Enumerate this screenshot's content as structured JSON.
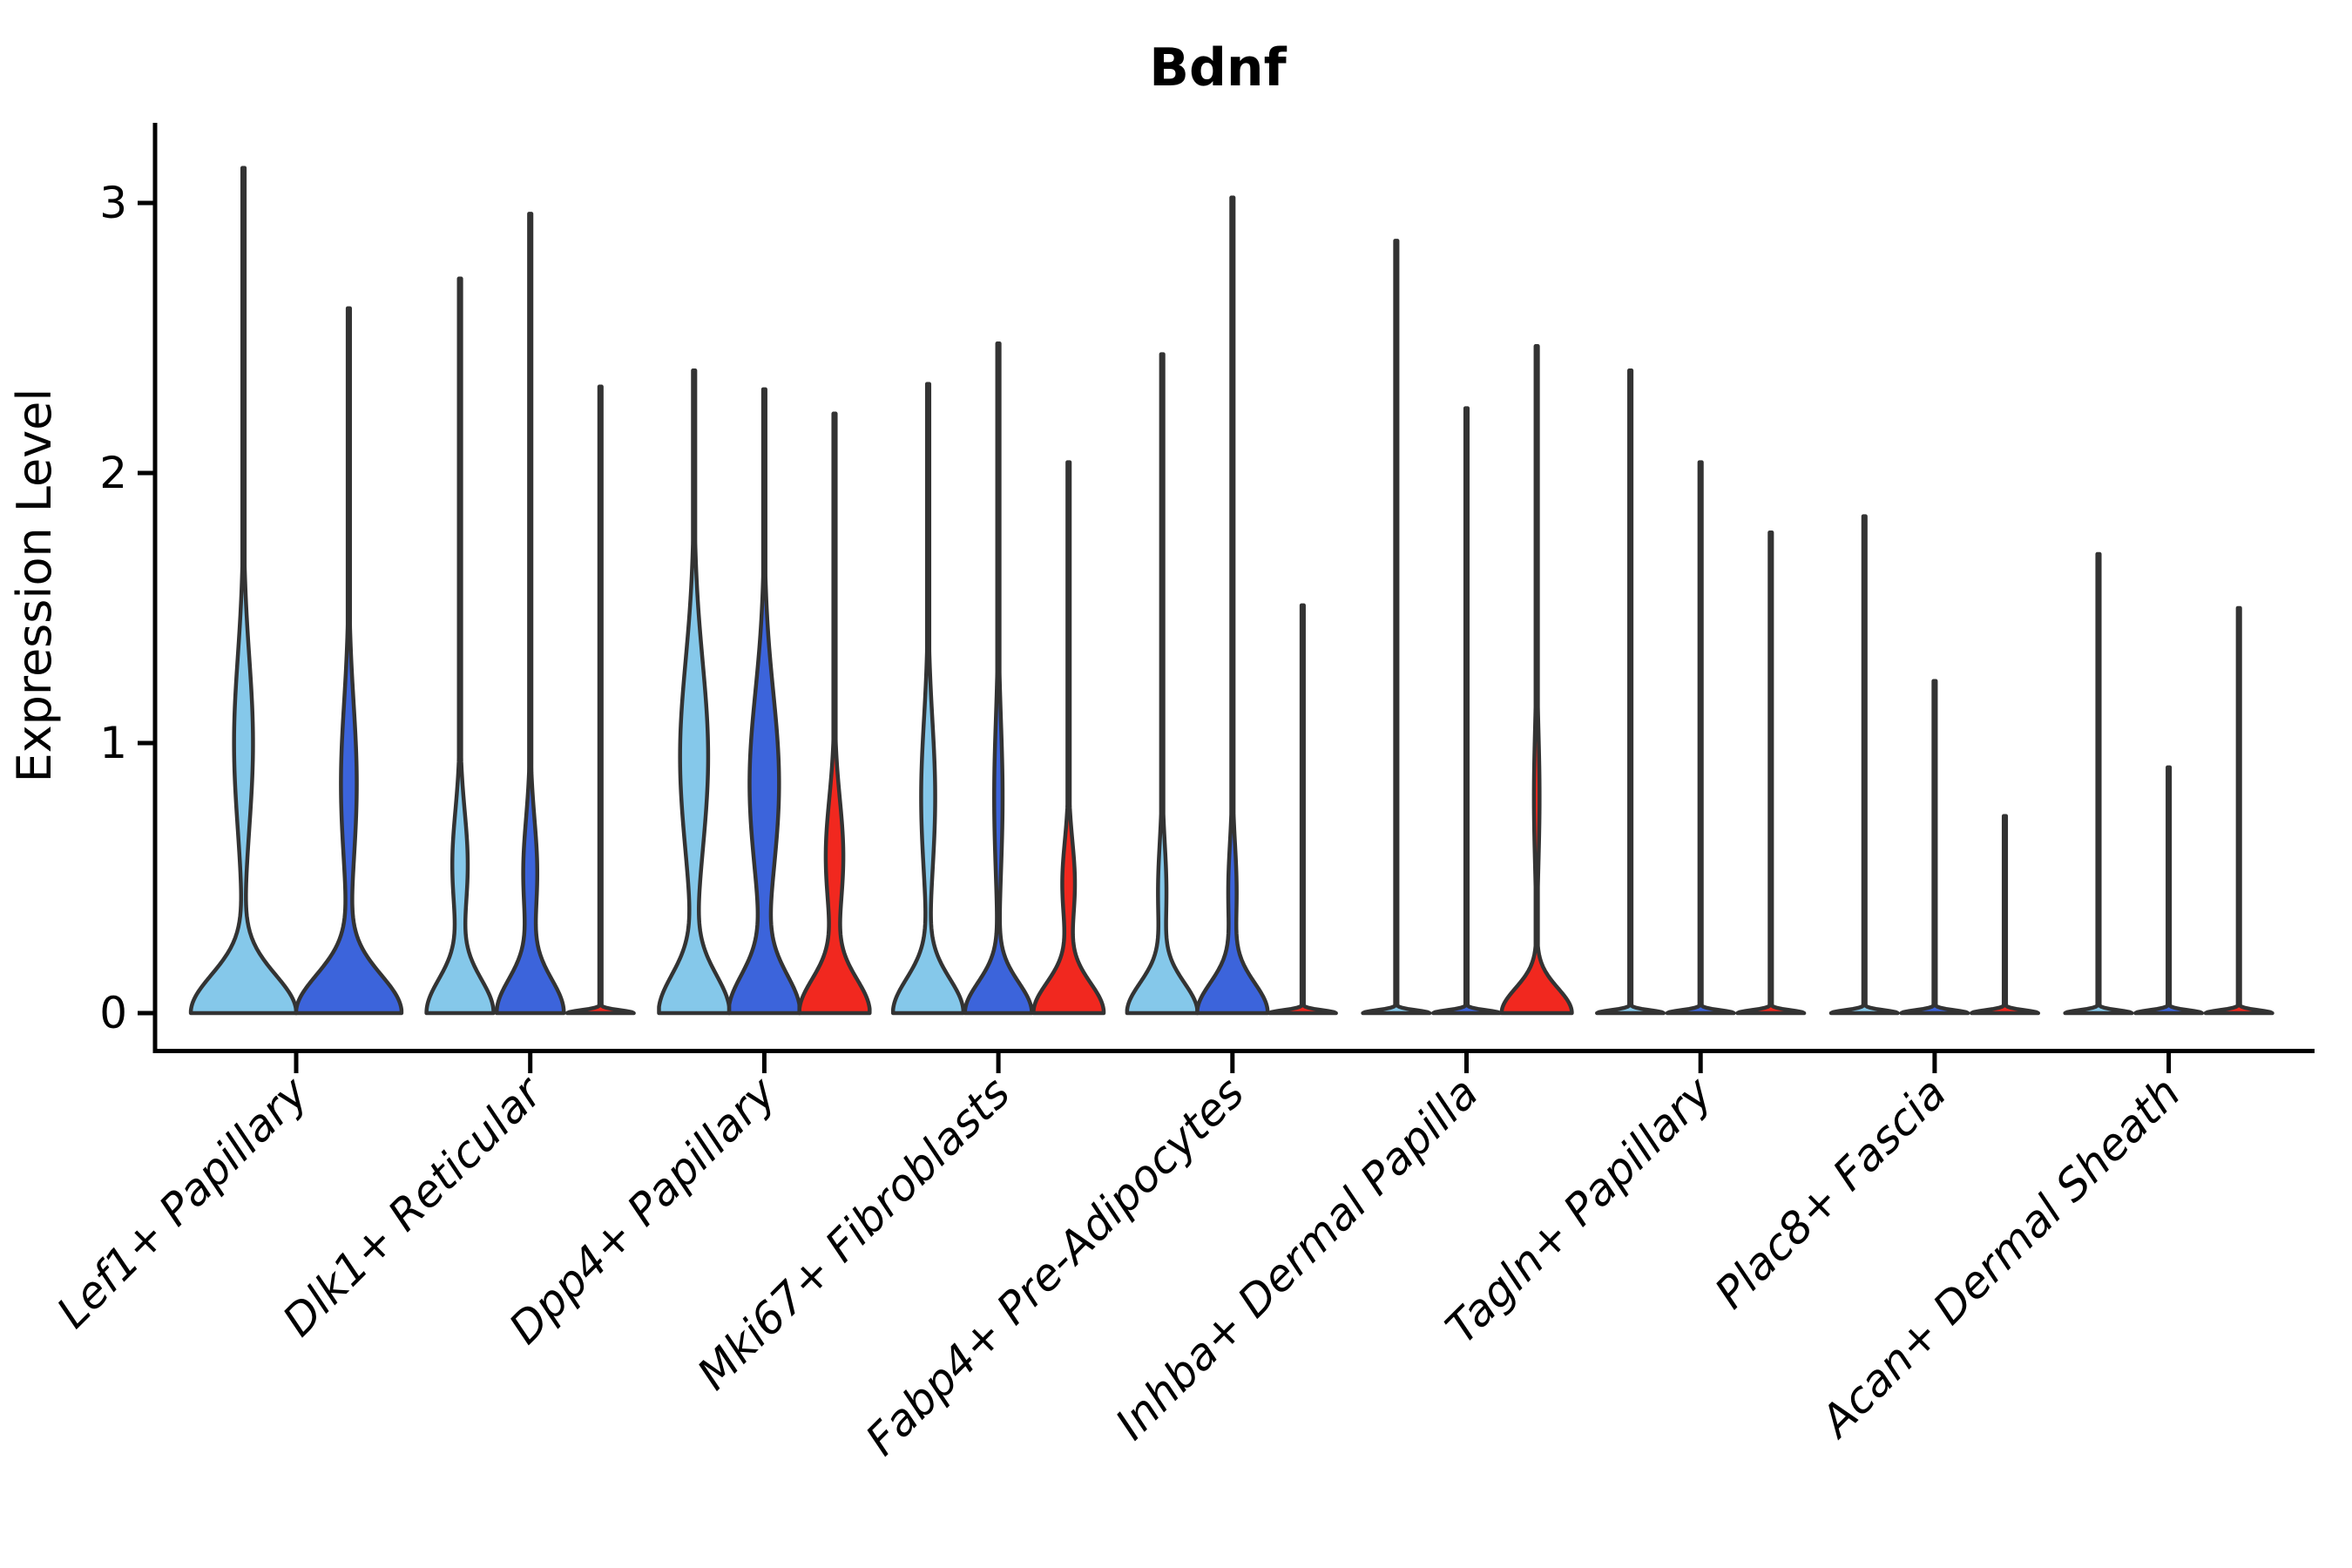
{
  "chart_data": {
    "type": "violin",
    "title": "Bdnf",
    "xlabel": "",
    "ylabel": "Expression Level",
    "yticks": [
      0,
      1,
      2,
      3
    ],
    "ylim": [
      -0.15,
      3.3
    ],
    "grid": false,
    "legend": "none",
    "series_colors": {
      "light_blue": "#85C8EA",
      "blue": "#3C64DB",
      "red": "#F1281F"
    },
    "outline_color": "#333333",
    "axis_color": "#000000",
    "categories": [
      {
        "label": "Lef1+ Papillary",
        "violins": [
          {
            "series": "light_blue",
            "max": 3.13,
            "base": [
              1.0,
              0.2
            ],
            "bulge": [
              0.18,
              1.0,
              0.45
            ]
          },
          {
            "series": "blue",
            "max": 2.61,
            "base": [
              1.0,
              0.2
            ],
            "bulge": [
              0.15,
              0.85,
              0.42
            ]
          }
        ]
      },
      {
        "label": "Dlk1+ Reticular",
        "violins": [
          {
            "series": "light_blue",
            "max": 2.72,
            "base": [
              0.95,
              0.18
            ],
            "bulge": [
              0.22,
              0.55,
              0.28
            ]
          },
          {
            "series": "blue",
            "max": 2.96,
            "base": [
              0.95,
              0.18
            ],
            "bulge": [
              0.2,
              0.52,
              0.28
            ]
          },
          {
            "series": "red",
            "max": 2.32,
            "base": [
              0.95,
              0.015
            ],
            "bulge": null
          }
        ]
      },
      {
        "label": "Dpp4+ Papillary",
        "violins": [
          {
            "series": "light_blue",
            "max": 2.38,
            "base": [
              1.0,
              0.2
            ],
            "bulge": [
              0.4,
              0.95,
              0.5
            ]
          },
          {
            "series": "blue",
            "max": 2.31,
            "base": [
              1.0,
              0.2
            ],
            "bulge": [
              0.42,
              0.85,
              0.48
            ]
          },
          {
            "series": "red",
            "max": 2.22,
            "base": [
              1.0,
              0.18
            ],
            "bulge": [
              0.25,
              0.58,
              0.3
            ]
          }
        ]
      },
      {
        "label": "Mki67+ Fibroblasts",
        "violins": [
          {
            "series": "light_blue",
            "max": 2.33,
            "base": [
              1.0,
              0.18
            ],
            "bulge": [
              0.2,
              0.8,
              0.4
            ]
          },
          {
            "series": "blue",
            "max": 2.48,
            "base": [
              0.95,
              0.16
            ],
            "bulge": [
              0.12,
              0.8,
              0.4
            ]
          },
          {
            "series": "red",
            "max": 2.04,
            "base": [
              1.0,
              0.16
            ],
            "bulge": [
              0.18,
              0.48,
              0.22
            ]
          }
        ]
      },
      {
        "label": "Fabp4+ Pre-Adipocytes",
        "violins": [
          {
            "series": "light_blue",
            "max": 2.44,
            "base": [
              1.0,
              0.16
            ],
            "bulge": [
              0.12,
              0.45,
              0.25
            ]
          },
          {
            "series": "blue",
            "max": 3.02,
            "base": [
              1.0,
              0.16
            ],
            "bulge": [
              0.12,
              0.45,
              0.25
            ]
          },
          {
            "series": "red",
            "max": 1.51,
            "base": [
              0.95,
              0.015
            ],
            "bulge": null
          }
        ]
      },
      {
        "label": "Inhba+ Dermal Papilla",
        "violins": [
          {
            "series": "light_blue",
            "max": 2.86,
            "base": [
              0.95,
              0.015
            ],
            "bulge": null
          },
          {
            "series": "blue",
            "max": 2.24,
            "base": [
              0.95,
              0.015
            ],
            "bulge": null
          },
          {
            "series": "red",
            "max": 2.47,
            "base": [
              1.0,
              0.13
            ],
            "bulge": [
              0.08,
              0.8,
              0.35
            ]
          }
        ]
      },
      {
        "label": "Tagln+ Papillary",
        "violins": [
          {
            "series": "light_blue",
            "max": 2.38,
            "base": [
              0.95,
              0.015
            ],
            "bulge": null
          },
          {
            "series": "blue",
            "max": 2.04,
            "base": [
              0.95,
              0.015
            ],
            "bulge": null
          },
          {
            "series": "red",
            "max": 1.78,
            "base": [
              0.95,
              0.015
            ],
            "bulge": null
          }
        ]
      },
      {
        "label": "Plac8+ Fascia",
        "violins": [
          {
            "series": "light_blue",
            "max": 1.84,
            "base": [
              0.95,
              0.015
            ],
            "bulge": null
          },
          {
            "series": "blue",
            "max": 1.23,
            "base": [
              0.95,
              0.015
            ],
            "bulge": null
          },
          {
            "series": "red",
            "max": 0.73,
            "base": [
              0.95,
              0.015
            ],
            "bulge": null
          }
        ]
      },
      {
        "label": "Acan+ Dermal Sheath",
        "violins": [
          {
            "series": "light_blue",
            "max": 1.7,
            "base": [
              0.95,
              0.015
            ],
            "bulge": null
          },
          {
            "series": "blue",
            "max": 0.91,
            "base": [
              0.95,
              0.015
            ],
            "bulge": null
          },
          {
            "series": "red",
            "max": 1.5,
            "base": [
              0.95,
              0.015
            ],
            "bulge": null
          }
        ]
      }
    ]
  }
}
